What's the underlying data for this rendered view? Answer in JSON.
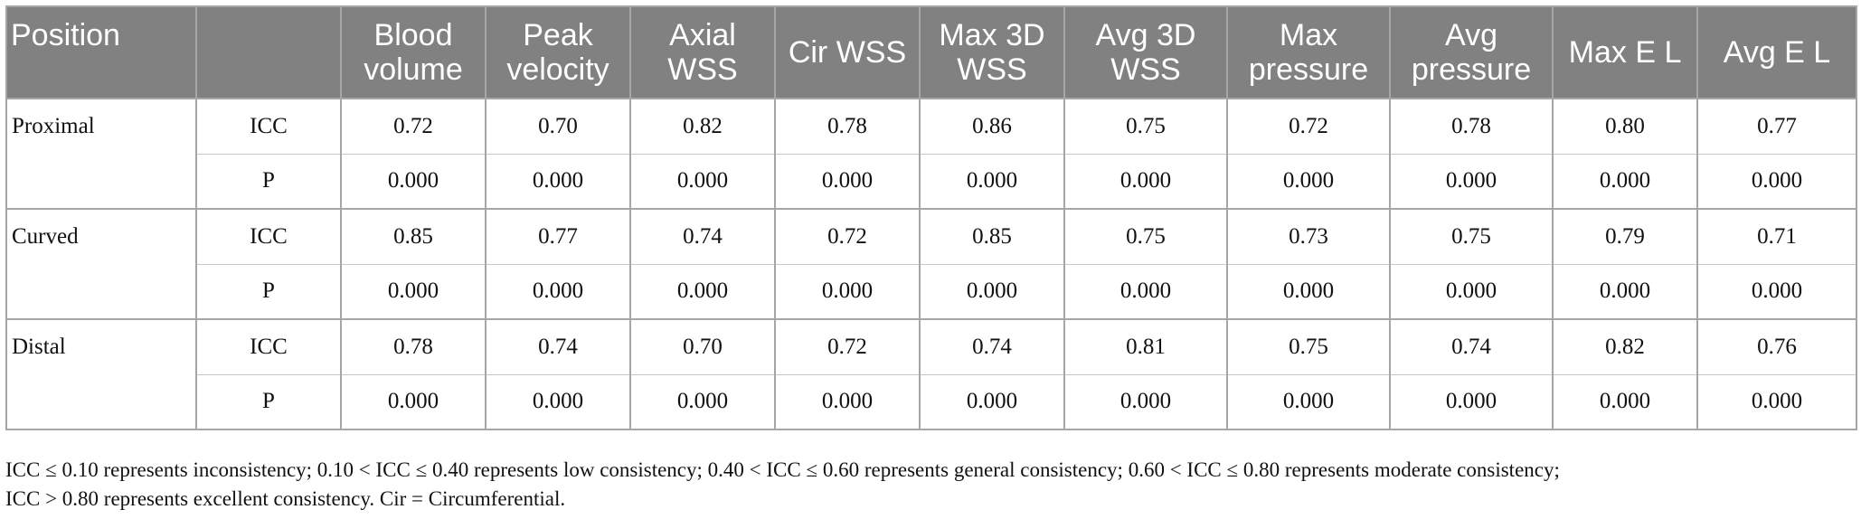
{
  "table": {
    "columns": [
      "Position",
      "",
      "Blood volume",
      "Peak velocity",
      "Axial WSS",
      "Cir WSS",
      "Max 3D WSS",
      "Avg 3D WSS",
      "Max pressure",
      "Avg pressure",
      "Max E L",
      "Avg E L"
    ],
    "groups": [
      {
        "position": "Proximal",
        "rows": [
          {
            "label": "ICC",
            "values": [
              "0.72",
              "0.70",
              "0.82",
              "0.78",
              "0.86",
              "0.75",
              "0.72",
              "0.78",
              "0.80",
              "0.77"
            ]
          },
          {
            "label": "P",
            "values": [
              "0.000",
              "0.000",
              "0.000",
              "0.000",
              "0.000",
              "0.000",
              "0.000",
              "0.000",
              "0.000",
              "0.000"
            ]
          }
        ]
      },
      {
        "position": "Curved",
        "rows": [
          {
            "label": "ICC",
            "values": [
              "0.85",
              "0.77",
              "0.74",
              "0.72",
              "0.85",
              "0.75",
              "0.73",
              "0.75",
              "0.79",
              "0.71"
            ]
          },
          {
            "label": "P",
            "values": [
              "0.000",
              "0.000",
              "0.000",
              "0.000",
              "0.000",
              "0.000",
              "0.000",
              "0.000",
              "0.000",
              "0.000"
            ]
          }
        ]
      },
      {
        "position": "Distal",
        "rows": [
          {
            "label": "ICC",
            "values": [
              "0.78",
              "0.74",
              "0.70",
              "0.72",
              "0.74",
              "0.81",
              "0.75",
              "0.74",
              "0.82",
              "0.76"
            ]
          },
          {
            "label": "P",
            "values": [
              "0.000",
              "0.000",
              "0.000",
              "0.000",
              "0.000",
              "0.000",
              "0.000",
              "0.000",
              "0.000",
              "0.000"
            ]
          }
        ]
      }
    ]
  },
  "footnote": {
    "line1": "ICC ≤ 0.10 represents inconsistency; 0.10 < ICC ≤ 0.40 represents low consistency; 0.40 < ICC ≤ 0.60 represents general consistency; 0.60 < ICC ≤ 0.80 represents moderate consistency;",
    "line2": "ICC > 0.80 represents excellent consistency. Cir = Circumferential."
  }
}
